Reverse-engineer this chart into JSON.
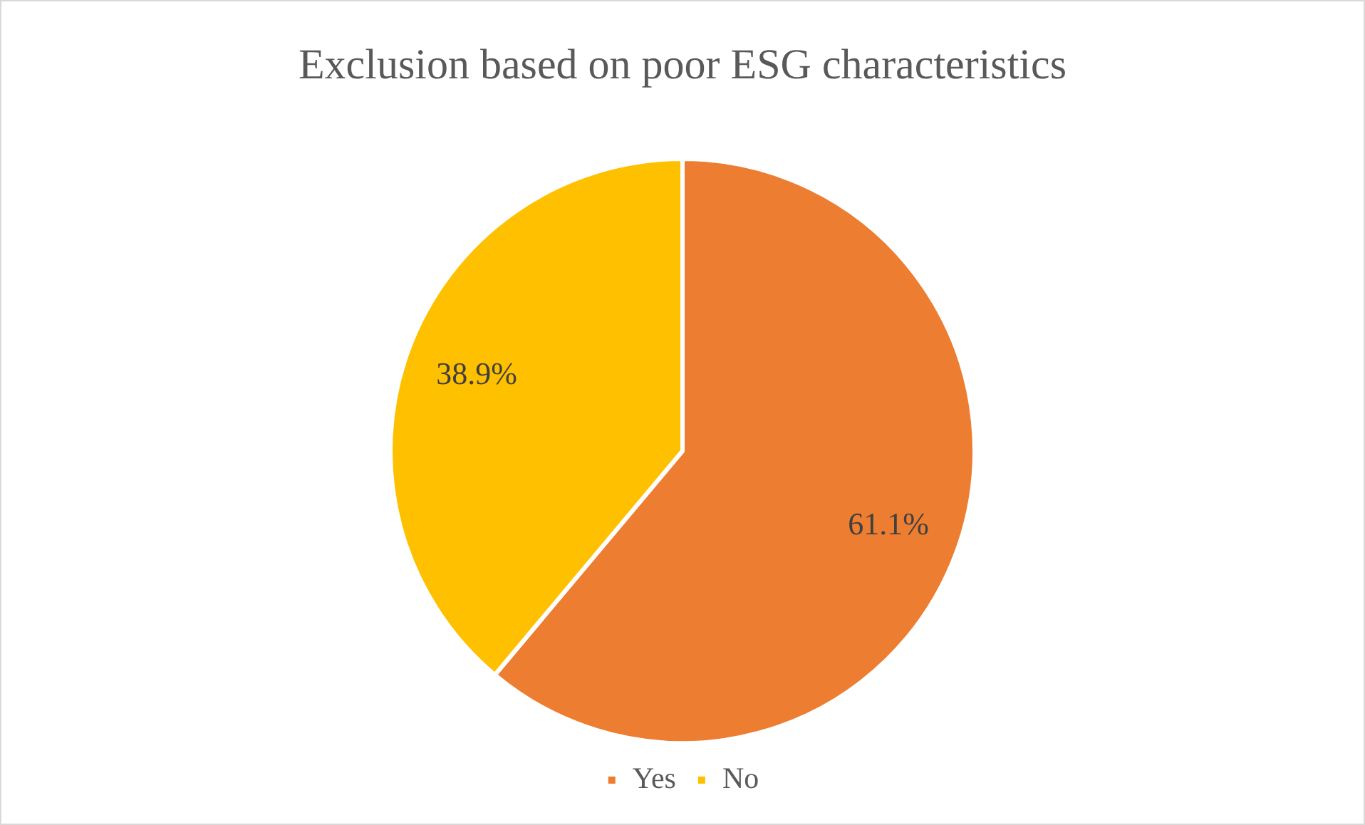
{
  "chart_data": {
    "type": "pie",
    "title": "Exclusion based on poor ESG characteristics",
    "categories": [
      "Yes",
      "No"
    ],
    "values": [
      61.1,
      38.9
    ],
    "colors": [
      "#ed7d31",
      "#ffc000"
    ],
    "value_labels": [
      "61.1%",
      "38.9%"
    ],
    "legend": "bottom"
  }
}
